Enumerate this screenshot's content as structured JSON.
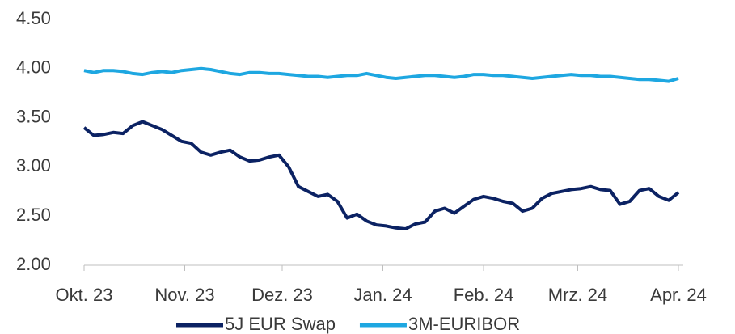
{
  "chart_data": {
    "type": "line",
    "x": [
      0,
      3,
      6,
      9,
      12,
      15,
      18,
      21,
      24,
      27,
      30,
      33,
      36,
      39,
      42,
      45,
      48,
      51,
      54,
      57,
      60,
      63,
      66,
      69,
      72,
      75,
      78,
      81,
      84,
      87,
      90,
      93,
      96,
      99,
      102,
      105,
      108,
      111,
      114,
      117,
      120,
      123,
      126,
      129,
      132,
      135,
      138,
      141,
      144,
      147,
      150,
      153,
      156,
      159,
      162,
      165,
      168,
      171,
      174,
      177,
      180,
      183
    ],
    "series": [
      {
        "name": "5J EUR Swap",
        "color": "#0b2263",
        "values": [
          3.4,
          3.32,
          3.33,
          3.35,
          3.34,
          3.42,
          3.46,
          3.42,
          3.38,
          3.32,
          3.26,
          3.24,
          3.15,
          3.12,
          3.15,
          3.17,
          3.1,
          3.06,
          3.07,
          3.1,
          3.12,
          3.0,
          2.8,
          2.75,
          2.7,
          2.72,
          2.65,
          2.48,
          2.52,
          2.45,
          2.41,
          2.4,
          2.38,
          2.37,
          2.42,
          2.44,
          2.55,
          2.58,
          2.53,
          2.6,
          2.67,
          2.7,
          2.68,
          2.65,
          2.63,
          2.55,
          2.58,
          2.68,
          2.73,
          2.75,
          2.77,
          2.78,
          2.8,
          2.77,
          2.76,
          2.62,
          2.65,
          2.76,
          2.78,
          2.7,
          2.66,
          2.74
        ]
      },
      {
        "name": "3M-EURIBOR",
        "color": "#1ea7e1",
        "values": [
          3.98,
          3.96,
          3.98,
          3.98,
          3.97,
          3.95,
          3.94,
          3.96,
          3.97,
          3.96,
          3.98,
          3.99,
          4.0,
          3.99,
          3.97,
          3.95,
          3.94,
          3.96,
          3.96,
          3.95,
          3.95,
          3.94,
          3.93,
          3.92,
          3.92,
          3.91,
          3.92,
          3.93,
          3.93,
          3.95,
          3.93,
          3.91,
          3.9,
          3.91,
          3.92,
          3.93,
          3.93,
          3.92,
          3.91,
          3.92,
          3.94,
          3.94,
          3.93,
          3.93,
          3.92,
          3.91,
          3.9,
          3.91,
          3.92,
          3.93,
          3.94,
          3.93,
          3.93,
          3.92,
          3.92,
          3.91,
          3.9,
          3.89,
          3.89,
          3.88,
          3.87,
          3.9
        ]
      }
    ],
    "xlim": [
      0,
      183
    ],
    "xticks": [
      {
        "value": 0,
        "label": "Okt. 23"
      },
      {
        "value": 31,
        "label": "Nov. 23"
      },
      {
        "value": 61,
        "label": "Dez. 23"
      },
      {
        "value": 92,
        "label": "Jan. 24"
      },
      {
        "value": 123,
        "label": "Feb. 24"
      },
      {
        "value": 152,
        "label": "Mrz. 24"
      },
      {
        "value": 183,
        "label": "Apr. 24"
      }
    ],
    "ylim": [
      2,
      4.5
    ],
    "yticks": [
      {
        "value": 2,
        "label": "2.00"
      },
      {
        "value": 2.5,
        "label": "2.50"
      },
      {
        "value": 3,
        "label": "3.00"
      },
      {
        "value": 3.5,
        "label": "3.50"
      },
      {
        "value": 4,
        "label": "4.00"
      },
      {
        "value": 4.5,
        "label": "4.50"
      }
    ],
    "legend": "bottom"
  }
}
